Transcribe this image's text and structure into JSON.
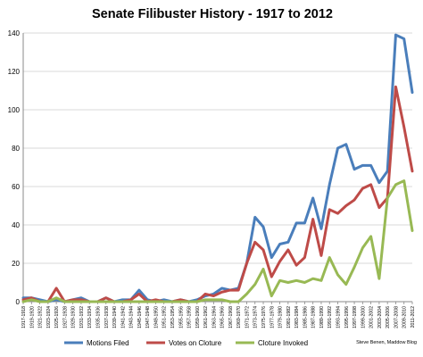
{
  "chart_data": {
    "type": "line",
    "title": "Senate Filibuster History - 1917 to 2012",
    "credit": "Steve Benen, Maddow Blog",
    "ylim": [
      0,
      140
    ],
    "yticks": [
      0,
      20,
      40,
      60,
      80,
      100,
      120,
      140
    ],
    "grid": true,
    "legend_position": "bottom",
    "categories": [
      "1917-1918",
      "1919-1920",
      "1921-1922",
      "1923-1924",
      "1925-1926",
      "1927-1928",
      "1929-1930",
      "1931-1932",
      "1933-1934",
      "1935-1936",
      "1937-1938",
      "1939-1940",
      "1941-1942",
      "1943-1944",
      "1945-1946",
      "1947-1948",
      "1949-1950",
      "1951-1952",
      "1953-1954",
      "1955-1956",
      "1957-1958",
      "1959-1960",
      "1961-1962",
      "1963-1964",
      "1965-1966",
      "1967-1968",
      "1969-1970",
      "1971-1972",
      "1973-1974",
      "1975-1976",
      "1977-1978",
      "1979-1980",
      "1981-1982",
      "1983-1984",
      "1985-1986",
      "1987-1988",
      "1989-1990",
      "1991-1992",
      "1993-1994",
      "1995-1996",
      "1997-1998",
      "1999-2000",
      "2001-2002",
      "2003-2004",
      "2005-2006",
      "2007-2008",
      "2009-2010",
      "2011-2012"
    ],
    "series": [
      {
        "name": "Motions Filed",
        "color": "#4a7ebb",
        "values": [
          2,
          2,
          1,
          0,
          1,
          0,
          1,
          2,
          0,
          0,
          2,
          0,
          1,
          1,
          6,
          1,
          0,
          1,
          0,
          1,
          0,
          1,
          3,
          4,
          7,
          6,
          7,
          20,
          44,
          39,
          23,
          30,
          31,
          41,
          41,
          54,
          38,
          61,
          80,
          82,
          69,
          71,
          71,
          62,
          68,
          139,
          137,
          109
        ]
      },
      {
        "name": "Votes on Cloture",
        "color": "#be4b48",
        "values": [
          1,
          2,
          0,
          0,
          7,
          0,
          1,
          1,
          0,
          0,
          2,
          0,
          0,
          1,
          4,
          0,
          1,
          0,
          0,
          1,
          0,
          0,
          4,
          3,
          5,
          6,
          6,
          20,
          31,
          27,
          13,
          21,
          27,
          19,
          23,
          43,
          24,
          48,
          46,
          50,
          53,
          59,
          61,
          49,
          54,
          112,
          91,
          68
        ]
      },
      {
        "name": "Cloture Invoked",
        "color": "#98b954",
        "values": [
          0,
          1,
          0,
          0,
          2,
          0,
          0,
          0,
          0,
          0,
          0,
          0,
          0,
          0,
          0,
          0,
          0,
          0,
          0,
          0,
          0,
          0,
          1,
          1,
          1,
          0,
          0,
          4,
          9,
          17,
          3,
          11,
          10,
          11,
          10,
          12,
          11,
          23,
          14,
          9,
          18,
          28,
          34,
          12,
          54,
          61,
          63,
          37
        ]
      }
    ]
  }
}
